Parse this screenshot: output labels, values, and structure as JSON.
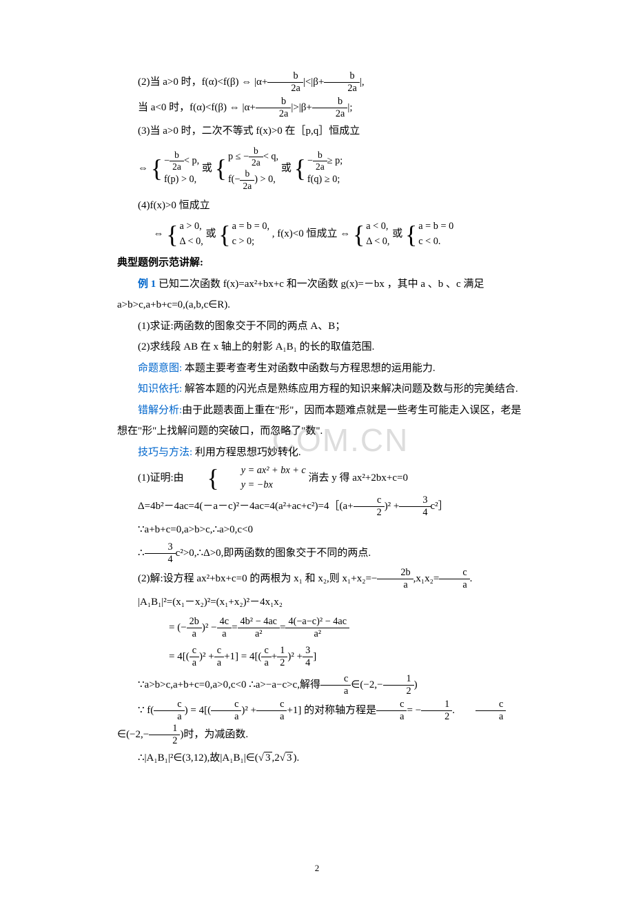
{
  "page_number": "2",
  "watermark_text": ".COM.CN",
  "colors": {
    "text": "#000000",
    "blue": "#0066cc",
    "watermark": "#dddddd",
    "background": "#ffffff"
  },
  "lines": {
    "l2a": "(2)当 a>0 时，f(α)<f(β)",
    "l2b": " |α+",
    "l2c": "|<|β+",
    "l2d": "|,",
    "l2e": "当 a<0 时，f(α)<f(β)",
    "l2f": "|α+",
    "l2g": "|>|β+",
    "l2h": "|;",
    "l3": "(3)当 a>0 时，二次不等式 f(x)>0 在［p,q］恒成立",
    "l4": "(4)f(x)>0 恒成立",
    "l4mid": ", f(x)<0 恒成立",
    "sec_title": "典型题例示范讲解:",
    "ex1_label": "例 1",
    "ex1_body": " 已知二次函数 f(x)=ax²+bx+c 和一次函数 g(x)=－bx ，其中 a 、b 、c 满足",
    "ex1_cond": "a>b>c,a+b+c=0,(a,b,c∈R).",
    "q1": "(1)求证:两函数的图象交于不同的两点 A、B；",
    "q2": "(2)求线段 AB 在 x 轴上的射影 A₁B₁ 的长的取值范围.",
    "intent_label": "命题意图:",
    "intent_body": " 本题主要考查考生对函数中函数与方程思想的运用能力.",
    "basis_label": "知识依托:",
    "basis_body": " 解答本题的闪光点是熟练应用方程的知识来解决问题及数与形的完美结合.",
    "error_label": "错解分析:",
    "error_body": "由于此题表面上重在\"形\"，因而本题难点就是一些考生可能走入误区，老是",
    "error_body2": "想在\"形\"上找解问题的突破口，而忽略了\"数\".",
    "method_label": "技巧与方法:",
    "method_body": " 利用方程思想巧妙转化.",
    "proof1a": "(1)证明:由",
    "proof1b": "消去 y 得 ax²+2bx+c=0",
    "sys_y1": "y = ax² + bx + c",
    "sys_y2": "y = −bx",
    "delta_line_a": "Δ=4b²－4ac=4(－a－c)²－4ac=4(a²+ac+c²)=4［(a+",
    "delta_line_b": ")² +",
    "delta_line_c": "c²］",
    "because1": "∵a+b+c=0,a>b>c,∴a>0,c<0",
    "therefore1a": "∴",
    "therefore1b": "c²>0,∴Δ>0,即两函数的图象交于不同的两点.",
    "sol2a": "(2)解:设方程 ax²+bx+c=0 的两根为 x₁ 和 x₂,则 x₁+x₂=−",
    "sol2b": ",x₁x₂=",
    "sol2c": ".",
    "ab_sq": "|A₁B₁|²=(x₁－x₂)²=(x₁+x₂)²－4x₁x₂",
    "eq_chain1a": "= (−",
    "eq_chain1b": ")² −",
    "eq_chain1c": "=",
    "eq_chain1d": "=",
    "eq_chain2a": "= 4[(",
    "eq_chain2b": ")² +",
    "eq_chain2c": "+1] = 4[(",
    "eq_chain2d": "+",
    "eq_chain2e": ")² +",
    "eq_chain2f": "]",
    "because2a": "∵a>b>c,a+b+c=0,a>0,c<0  ∴a>−a−c>c,解得",
    "because2b": "∈(−2,−",
    "because2c": ")",
    "because3a": "∵ f(",
    "because3b": ") = 4[(",
    "because3c": ")² +",
    "because3d": "+1] 的对称轴方程是",
    "because3e": "= −",
    "because3f": ".　　",
    "because3g": "∈(−2,−",
    "because3h": ")时，为减函数.",
    "final_a": "∴|A₁B₁|²∈(3,12),故|A₁B₁|∈(",
    "final_b": ",2",
    "final_c": ").",
    "sqrt3": "3",
    "or_text": "或",
    "iff": "⇔",
    "frac_b_2a_num": "b",
    "frac_b_2a_den": "2a",
    "frac_3_4_num": "3",
    "frac_3_4_den": "4",
    "frac_c_2_num": "c",
    "frac_c_2_den": "2",
    "frac_2b_a_num": "2b",
    "frac_2b_a_den": "a",
    "frac_c_a_num": "c",
    "frac_c_a_den": "a",
    "frac_4c_a_num": "4c",
    "frac_4c_a_den": "a",
    "frac_4b2_num": "4b² − 4ac",
    "frac_a2_den": "a²",
    "frac_4ac_num": "4(−a−c)² − 4ac",
    "frac_1_2_num": "1",
    "frac_1_2_den": "2"
  },
  "systems": {
    "s3_case1_r1_pre": "−",
    "s3_case1_r1_post": "< p,",
    "s3_case1_r2": "f(p) > 0,",
    "s3_case2_r1_pre": "p ≤ −",
    "s3_case2_r1_post": "< q,",
    "s3_case2_r2_pre": "f(−",
    "s3_case2_r2_post": ") > 0,",
    "s3_case3_r1_pre": "−",
    "s3_case3_r1_post": "≥ p;",
    "s3_case3_r2": "f(q) ≥ 0;",
    "s4_case1_r1": "a > 0,",
    "s4_case1_r2": "Δ < 0,",
    "s4_case2_r1": "a = b = 0,",
    "s4_case2_r2": "c > 0;",
    "s4_case3_r1": "a < 0,",
    "s4_case3_r2": "Δ < 0,",
    "s4_case4_r1": "a = b = 0",
    "s4_case4_r2": "c < 0."
  }
}
